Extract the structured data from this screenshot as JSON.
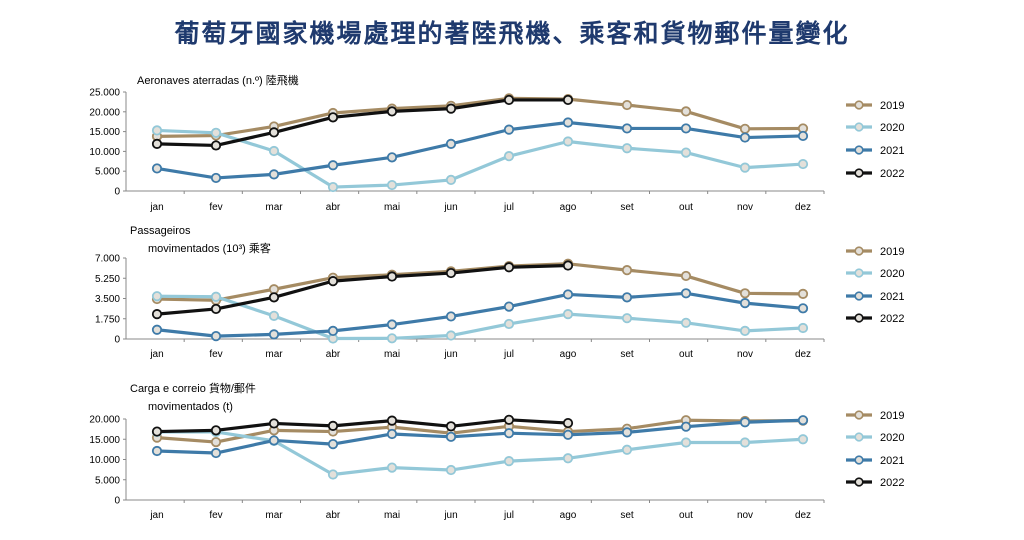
{
  "page": {
    "title": "葡萄牙國家機場處理的著陸飛機、乘客和貨物郵件量變化"
  },
  "chart_data": [
    {
      "type": "line",
      "title_lines": [
        "Aeronaves aterradas (n.º) 陸飛機"
      ],
      "categories": [
        "jan",
        "fev",
        "mar",
        "abr",
        "mai",
        "jun",
        "jul",
        "ago",
        "set",
        "out",
        "nov",
        "dez"
      ],
      "ylim": [
        0,
        25000
      ],
      "yticks": [
        0,
        5000,
        10000,
        15000,
        20000,
        25000
      ],
      "ytick_labels": [
        "0",
        "5.000",
        "10.000",
        "15.000",
        "20.000",
        "25.000"
      ],
      "grid": false,
      "legend_position": "right",
      "series": [
        {
          "name": "2019",
          "color": "#a58b63",
          "values": [
            13800,
            14000,
            16300,
            19700,
            20800,
            21500,
            23400,
            23200,
            21700,
            20100,
            15700,
            15800
          ]
        },
        {
          "name": "2020",
          "color": "#93c8d8",
          "values": [
            15300,
            14700,
            10100,
            1000,
            1500,
            2800,
            8800,
            12500,
            10800,
            9700,
            5900,
            6800
          ]
        },
        {
          "name": "2021",
          "color": "#3e7aa8",
          "values": [
            5700,
            3300,
            4200,
            6500,
            8500,
            11900,
            15500,
            17300,
            15800,
            15800,
            13500,
            13900
          ]
        },
        {
          "name": "2022",
          "color": "#111111",
          "values": [
            11900,
            11500,
            14800,
            18600,
            20100,
            20800,
            23000,
            23000,
            null,
            null,
            null,
            null
          ]
        }
      ]
    },
    {
      "type": "line",
      "title_lines": [
        "Passageiros",
        "movimentados (10³) 乘客"
      ],
      "categories": [
        "jan",
        "fev",
        "mar",
        "abr",
        "mai",
        "jun",
        "jul",
        "ago",
        "set",
        "out",
        "nov",
        "dez"
      ],
      "ylim": [
        0,
        7000
      ],
      "yticks": [
        0,
        1750,
        3500,
        5250,
        7000
      ],
      "ytick_labels": [
        "0",
        "1.750",
        "3.500",
        "5.250",
        "7.000"
      ],
      "grid": false,
      "legend_position": "right",
      "series": [
        {
          "name": "2019",
          "color": "#a58b63",
          "values": [
            3450,
            3350,
            4300,
            5300,
            5550,
            5850,
            6300,
            6500,
            5950,
            5450,
            3950,
            3900
          ]
        },
        {
          "name": "2020",
          "color": "#93c8d8",
          "values": [
            3700,
            3650,
            2000,
            40,
            60,
            300,
            1300,
            2150,
            1800,
            1400,
            700,
            950
          ]
        },
        {
          "name": "2021",
          "color": "#3e7aa8",
          "values": [
            800,
            250,
            400,
            700,
            1250,
            1950,
            2800,
            3850,
            3600,
            3950,
            3100,
            2650
          ]
        },
        {
          "name": "2022",
          "color": "#111111",
          "values": [
            2150,
            2600,
            3600,
            5000,
            5400,
            5700,
            6200,
            6350,
            null,
            null,
            null,
            null
          ]
        }
      ]
    },
    {
      "type": "line",
      "title_lines": [
        "Carga e correio 貨物/郵件",
        "movimentados (t)"
      ],
      "categories": [
        "jan",
        "fev",
        "mar",
        "abr",
        "mai",
        "jun",
        "jul",
        "ago",
        "set",
        "out",
        "nov",
        "dez"
      ],
      "ylim": [
        0,
        20000
      ],
      "yticks": [
        0,
        5000,
        10000,
        15000,
        20000
      ],
      "ytick_labels": [
        "0",
        "5.000",
        "10.000",
        "15.000",
        "20.000"
      ],
      "grid": false,
      "legend_position": "right",
      "series": [
        {
          "name": "2019",
          "color": "#a58b63",
          "values": [
            15400,
            14300,
            17200,
            16900,
            18000,
            16500,
            18200,
            16900,
            17600,
            19700,
            19500,
            19600
          ]
        },
        {
          "name": "2020",
          "color": "#93c8d8",
          "values": [
            16800,
            16800,
            14600,
            6300,
            8000,
            7400,
            9600,
            10300,
            12400,
            14200,
            14200,
            15000
          ]
        },
        {
          "name": "2021",
          "color": "#3e7aa8",
          "values": [
            12100,
            11600,
            14700,
            13800,
            16300,
            15600,
            16500,
            16100,
            16700,
            18100,
            19200,
            19700
          ]
        },
        {
          "name": "2022",
          "color": "#111111",
          "values": [
            16900,
            17200,
            18900,
            18300,
            19600,
            18200,
            19800,
            19000,
            null,
            null,
            null,
            null
          ]
        }
      ]
    }
  ]
}
